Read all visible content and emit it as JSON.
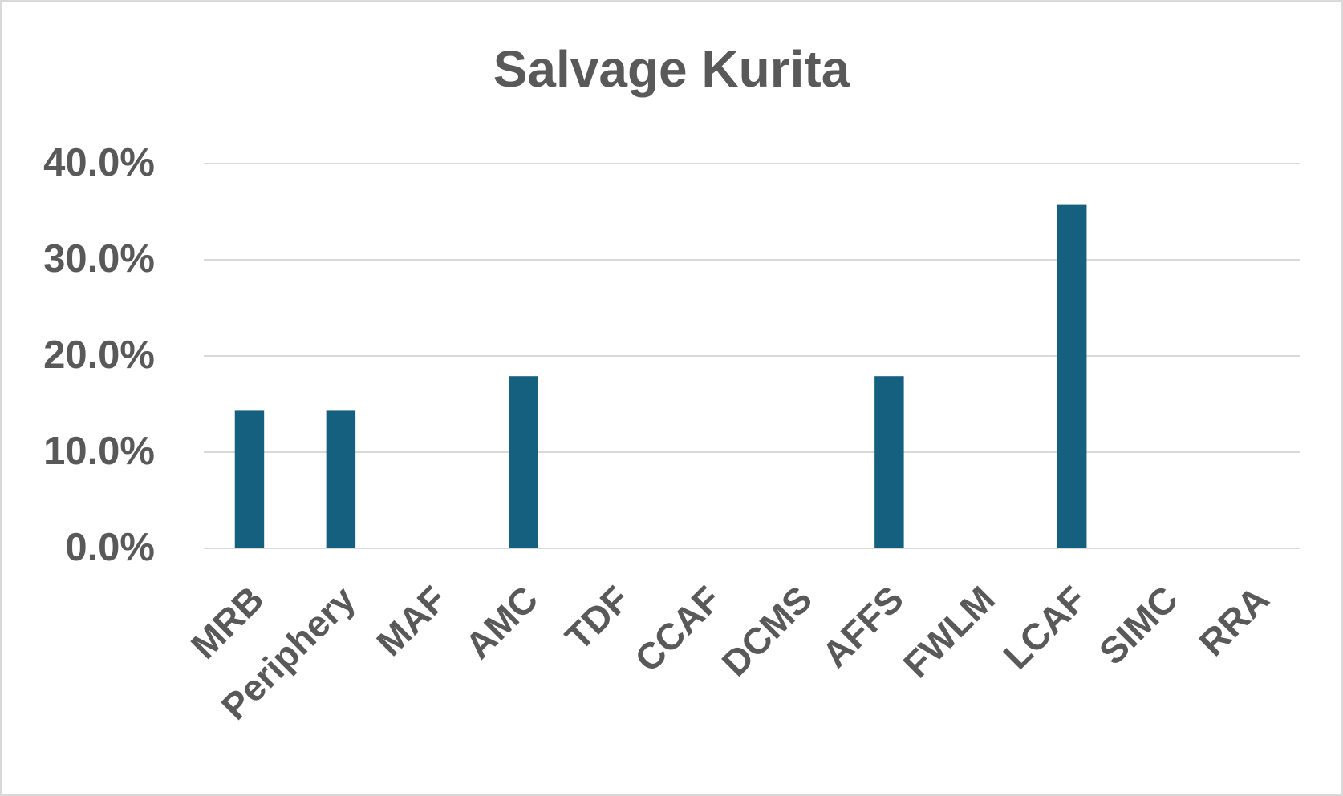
{
  "chart_data": {
    "type": "bar",
    "title": "Salvage Kurita",
    "categories": [
      "MRB",
      "Periphery",
      "MAF",
      "AMC",
      "TDF",
      "CCAF",
      "DCMS",
      "AFFS",
      "FWLM",
      "LCAF",
      "SIMC",
      "RRA"
    ],
    "values": [
      14.3,
      14.3,
      0,
      17.9,
      0,
      0,
      0,
      17.9,
      0,
      35.7,
      0,
      0
    ],
    "color": "#15607f",
    "ylim": [
      0,
      40
    ],
    "yticks": [
      {
        "value": 0,
        "label": "0.0%"
      },
      {
        "value": 10,
        "label": "10.0%"
      },
      {
        "value": 20,
        "label": "20.0%"
      },
      {
        "value": 30,
        "label": "30.0%"
      },
      {
        "value": 40,
        "label": "40.0%"
      }
    ],
    "grid": true
  }
}
